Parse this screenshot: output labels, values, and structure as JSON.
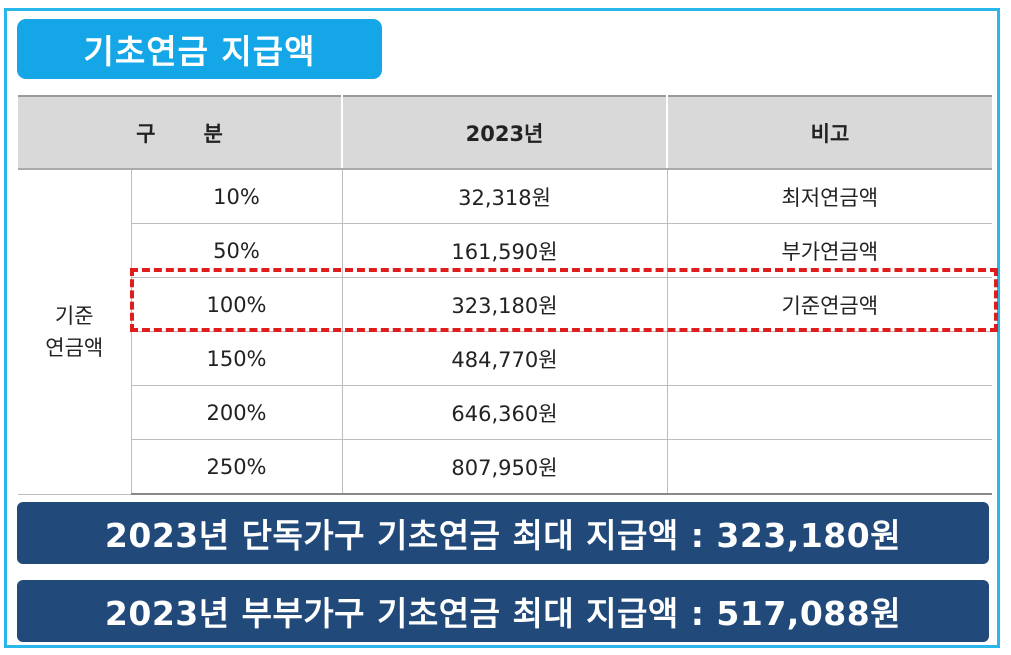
{
  "title": "기초연금 지급액",
  "table": {
    "headers": {
      "category_char1": "구",
      "category_char2": "분",
      "year": "2023년",
      "note": "비고"
    },
    "group_label_line1": "기준",
    "group_label_line2": "연금액",
    "rows": [
      {
        "percent": "10%",
        "amount": "32,318원",
        "note": "최저연금액"
      },
      {
        "percent": "50%",
        "amount": "161,590원",
        "note": "부가연금액"
      },
      {
        "percent": "100%",
        "amount": "323,180원",
        "note": "기준연금액"
      },
      {
        "percent": "150%",
        "amount": "484,770원",
        "note": ""
      },
      {
        "percent": "200%",
        "amount": "646,360원",
        "note": ""
      },
      {
        "percent": "250%",
        "amount": "807,950원",
        "note": ""
      }
    ],
    "highlighted_row": "100%"
  },
  "summary": {
    "single": "2023년 단독가구 기초연금 최대 지급액 : 323,180원",
    "couple": "2023년 부부가구 기초연금 최대 지급액 : 517,088원"
  },
  "colors": {
    "title_badge": "#14a6e6",
    "frame_border": "#29b6e8",
    "summary_bar": "#214a7a",
    "highlight_dash": "#e01c1c",
    "header_bg": "#d9d9d9"
  }
}
